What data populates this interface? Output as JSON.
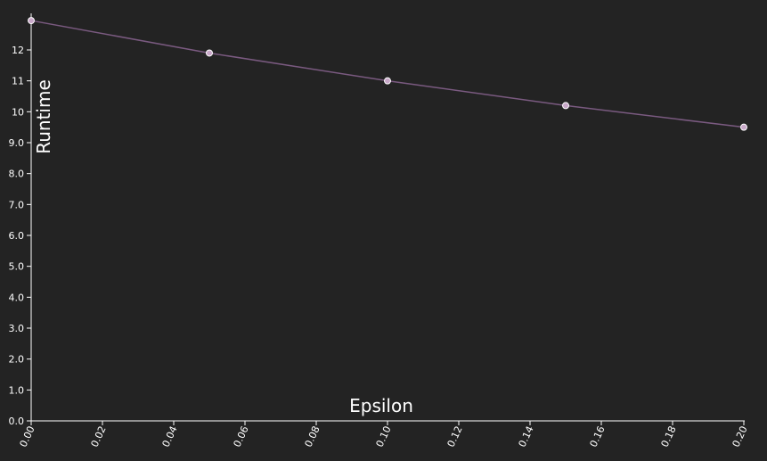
{
  "chart_data": {
    "type": "line",
    "xlabel": "Epsilon",
    "ylabel": "Runtime",
    "xlim": [
      0,
      0.2
    ],
    "ylim": [
      0,
      13
    ],
    "x_ticks": [
      "0.00",
      "0.02",
      "0.04",
      "0.06",
      "0.08",
      "0.10",
      "0.12",
      "0.14",
      "0.16",
      "0.18",
      "0.20"
    ],
    "y_ticks": [
      "0.0",
      "1.0",
      "2.0",
      "3.0",
      "4.0",
      "5.0",
      "6.0",
      "7.0",
      "8.0",
      "9.0",
      "10",
      "11",
      "12"
    ],
    "grid": false,
    "series": [
      {
        "x": [
          0.0,
          0.05,
          0.1,
          0.15,
          0.2
        ],
        "values": [
          12.95,
          11.9,
          11.0,
          10.2,
          9.5
        ]
      }
    ],
    "colors": {
      "background": "#232323",
      "line": "#7a5a80",
      "point_fill": "#c9a8c9",
      "axis": "#ffffff"
    }
  }
}
